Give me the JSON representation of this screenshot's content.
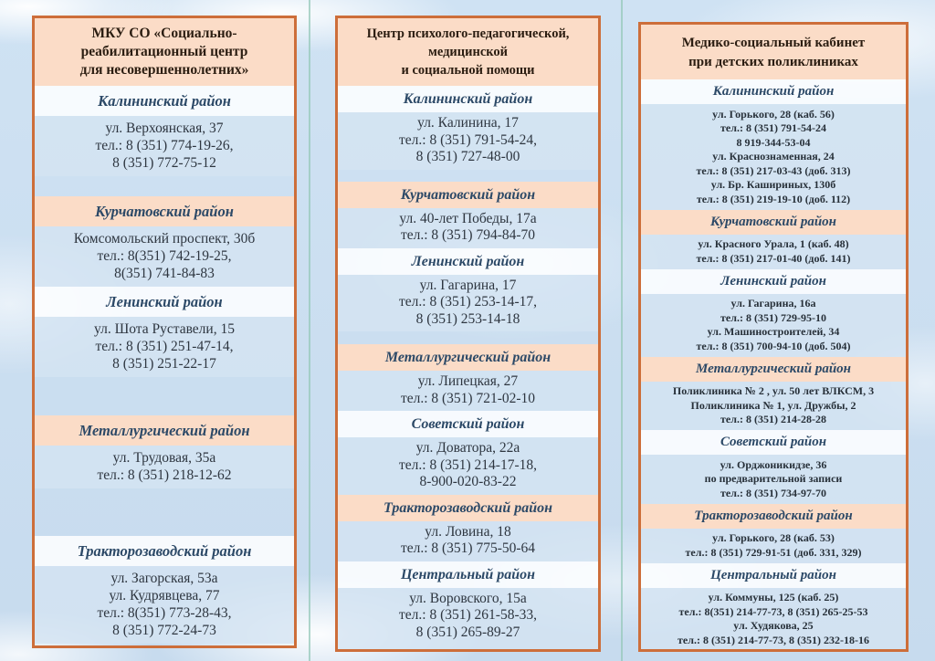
{
  "document": {
    "kind": "tri-fold brochure page with contact lists",
    "colors": {
      "panel_border": "#cd6e3a",
      "band_peach": "#fbdcc7",
      "band_white": "#fdfeff",
      "band_blue": "#d5e4f2",
      "fold_line": "#96c8b9",
      "title_text": "#2b1d11",
      "district_text": "#2c4967",
      "address_text": "#2e3640"
    },
    "panels": [
      {
        "title": "МКУ СО «Социально-\nреабилитационный центр\nдля несовершеннолетних»",
        "sections": [
          {
            "district": "Калининский район",
            "band": "white",
            "lines": [
              "ул. Верхоянская, 37",
              "тел.: 8 (351) 774-19-26,",
              "8 (351) 772-75-12"
            ],
            "gap_after": 22
          },
          {
            "district": "Курчатовский район",
            "band": "peach",
            "lines": [
              "Комсомольский проспект, 30б",
              "тел.: 8(351) 742-19-25,",
              "8(351) 741-84-83"
            ],
            "gap_after": 0
          },
          {
            "district": "Ленинский район",
            "band": "white",
            "lines": [
              "ул. Шота Руставели, 15",
              "тел.: 8 (351) 251-47-14,",
              "8 (351) 251-22-17"
            ],
            "gap_after": 42
          },
          {
            "district": "Металлургический район",
            "band": "peach",
            "lines": [
              "ул. Трудовая, 35а",
              "тел.: 8 (351) 218-12-62"
            ],
            "gap_after": 52
          },
          {
            "district": "Тракторозаводский район",
            "band": "white",
            "lines": [
              "ул. Загорская, 53а",
              "ул. Кудрявцева, 77",
              "тел.: 8(351) 773-28-43,",
              "8 (351) 772-24-73"
            ],
            "gap_after": 0
          }
        ]
      },
      {
        "title": "Центр психолого-педагогической,\nмедицинской\nи социальной помощи",
        "sections": [
          {
            "district": "Калининский район",
            "band": "white",
            "lines": [
              "ул. Калинина, 17",
              "тел.: 8 (351) 791-54-24,",
              "8 (351) 727-48-00"
            ],
            "gap_after": 13
          },
          {
            "district": "Курчатовский район",
            "band": "peach",
            "lines": [
              "ул. 40-лет Победы, 17а",
              "тел.: 8 (351) 794-84-70"
            ],
            "gap_after": 0
          },
          {
            "district": "Ленинский район",
            "band": "white",
            "lines": [
              "ул. Гагарина, 17",
              "тел.: 8 (351) 253-14-17,",
              "8 (351) 253-14-18"
            ],
            "gap_after": 14
          },
          {
            "district": "Металлургический район",
            "band": "peach",
            "lines": [
              "ул. Липецкая, 27",
              "тел.: 8 (351) 721-02-10"
            ],
            "gap_after": 0
          },
          {
            "district": "Советский район",
            "band": "white",
            "lines": [
              "ул. Доватора, 22а",
              "тел.: 8 (351) 214-17-18,",
              "8-900-020-83-22"
            ],
            "gap_after": 0
          },
          {
            "district": "Тракторозаводский район",
            "band": "peach",
            "lines": [
              "ул. Ловина, 18",
              "тел.: 8 (351) 775-50-64"
            ],
            "gap_after": 0
          },
          {
            "district": "Центральный район",
            "band": "white",
            "lines": [
              "ул. Воровского, 15а",
              "тел.: 8 (351) 261-58-33,",
              "8 (351) 265-89-27"
            ],
            "gap_after": 0
          }
        ]
      },
      {
        "title": "Медико-социальный кабинет\nпри детских поликлиниках",
        "sections": [
          {
            "district": "Калининский район",
            "band": "white",
            "lines": [
              "ул. Горького, 28 (каб. 56)",
              "тел.: 8 (351) 791-54-24",
              "8 919-344-53-04",
              "ул. Краснознаменная, 24",
              "тел.: 8 (351) 217-03-43  (доб. 313)",
              "ул. Бр. Кашириных, 130б",
              "тел.: 8 (351) 219-19-10 (доб. 112)"
            ],
            "gap_after": 0
          },
          {
            "district": "Курчатовский район",
            "band": "peach",
            "lines": [
              "ул. Красного Урала, 1 (каб. 48)",
              "тел.: 8 (351) 217-01-40  (доб. 141)"
            ],
            "gap_after": 0
          },
          {
            "district": "Ленинский район",
            "band": "white",
            "lines": [
              "ул. Гагарина, 16а",
              "тел.: 8 (351) 729-95-10",
              "ул. Машиностроителей, 34",
              "тел.: 8 (351) 700-94-10 (доб. 504)"
            ],
            "gap_after": 0
          },
          {
            "district": "Металлургический район",
            "band": "peach",
            "lines": [
              "Поликлиника № 2 ,  ул. 50 лет ВЛКСМ, 3",
              "Поликлиника № 1,  ул. Дружбы, 2",
              "тел.: 8 (351) 214-28-28"
            ],
            "gap_after": 0
          },
          {
            "district": "Советский район",
            "band": "white",
            "lines": [
              "ул. Орджоникидзе, 36",
              "по предварительной записи",
              "тел.: 8 (351) 734-97-70"
            ],
            "gap_after": 0
          },
          {
            "district": "Тракторозаводский район",
            "band": "peach",
            "lines": [
              "ул. Горького, 28 (каб. 53)",
              "тел.: 8 (351) 729-91-51 (доб. 331, 329)"
            ],
            "gap_after": 0
          },
          {
            "district": "Центральный район",
            "band": "white",
            "lines": [
              "ул. Коммуны, 125 (каб. 25)",
              "тел.: 8(351) 214-77-73,  8 (351) 265-25-53",
              "ул. Худякова, 25",
              "тел.: 8 (351) 214-77-73,  8 (351) 232-18-16"
            ],
            "gap_after": 0
          }
        ]
      }
    ]
  }
}
